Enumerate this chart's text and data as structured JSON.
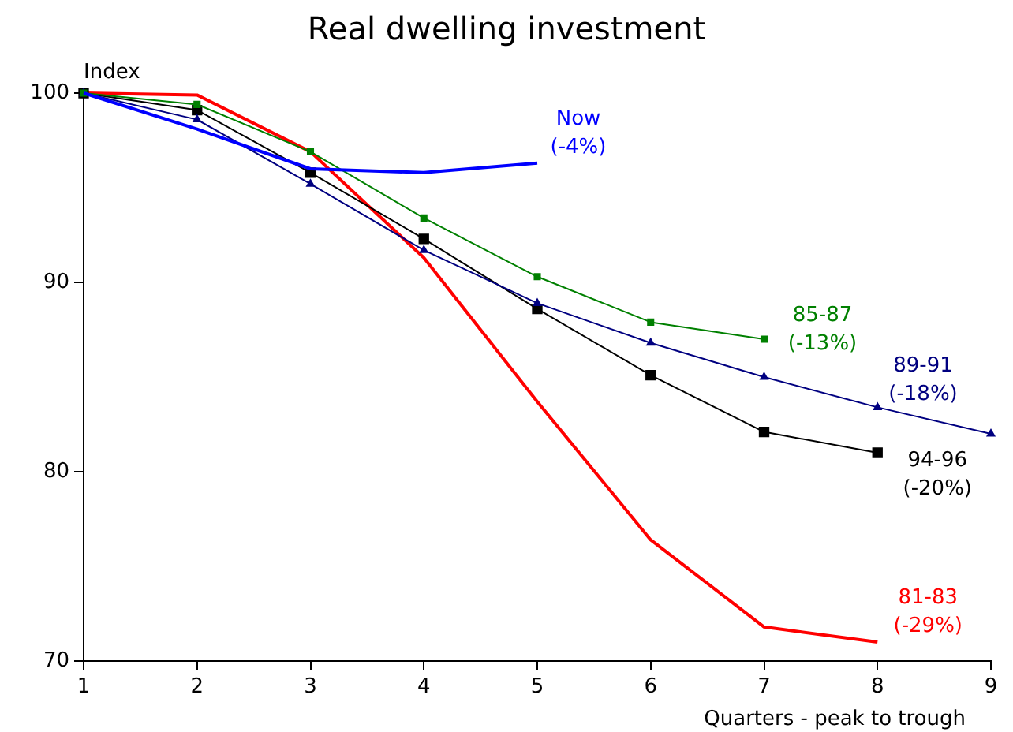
{
  "chart_data": {
    "type": "line",
    "title": "Real dwelling investment",
    "ylabel": "Index",
    "xlabel": "Quarters - peak to trough",
    "x": [
      1,
      2,
      3,
      4,
      5,
      6,
      7,
      8,
      9
    ],
    "xlim": [
      1,
      9
    ],
    "xticks": [
      1,
      2,
      3,
      4,
      5,
      6,
      7,
      8,
      9
    ],
    "ylim": [
      70,
      100
    ],
    "yticks": [
      70,
      80,
      90,
      100
    ],
    "grid": false,
    "legend": false,
    "series": [
      {
        "name": "Now (-4%)",
        "color": "#0000ff",
        "marker": "none",
        "values": [
          100,
          98.1,
          96,
          95.8,
          96.3,
          null,
          null,
          null,
          null
        ]
      },
      {
        "name": "85-87 (-13%)",
        "color": "#008000",
        "marker": "square",
        "values": [
          100,
          99.4,
          96.9,
          93.4,
          90.3,
          87.9,
          87.0,
          null,
          null
        ]
      },
      {
        "name": "89-91 (-18%)",
        "color": "#000080",
        "marker": "triangle",
        "values": [
          100,
          98.6,
          95.2,
          91.7,
          88.9,
          86.8,
          85.0,
          83.4,
          82.0
        ]
      },
      {
        "name": "94-96 (-20%)",
        "color": "#000000",
        "marker": "square",
        "values": [
          100,
          99.1,
          95.8,
          92.3,
          88.6,
          85.1,
          82.1,
          81.0,
          null
        ]
      },
      {
        "name": "81-83 (-29%)",
        "color": "#ff0000",
        "marker": "none",
        "values": [
          100,
          99.9,
          96.9,
          91.3,
          83.7,
          76.4,
          71.8,
          71.0,
          null
        ]
      }
    ]
  }
}
